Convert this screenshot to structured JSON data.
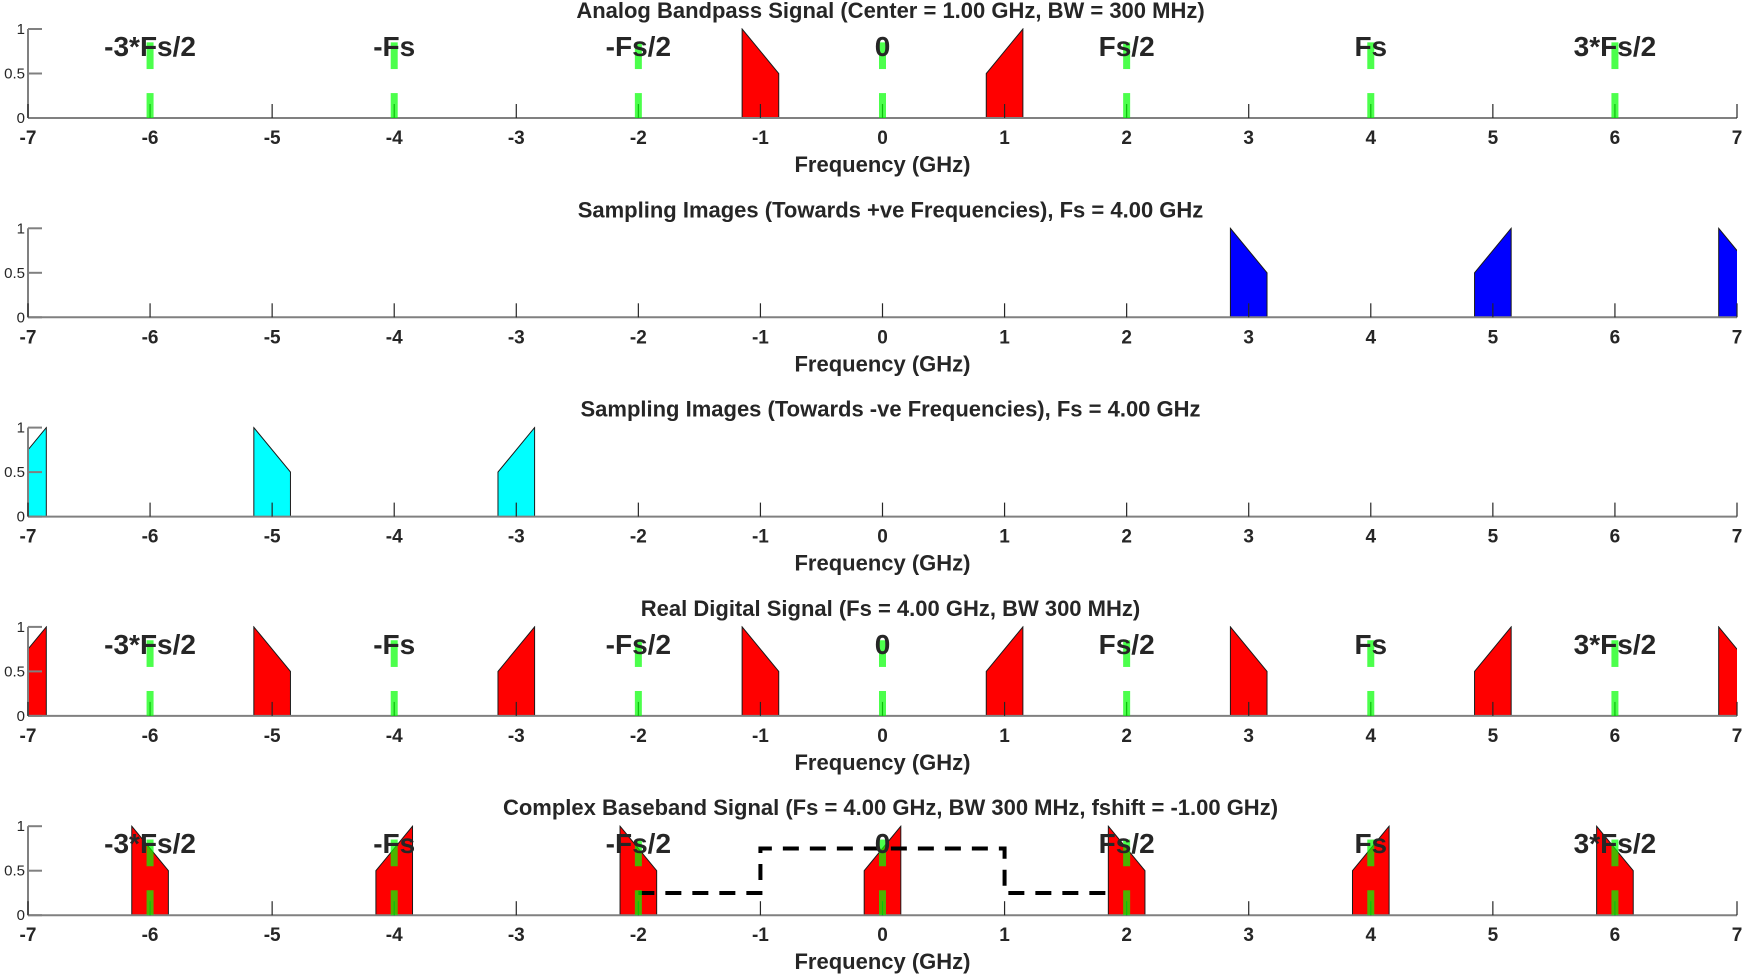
{
  "chart_data": [
    {
      "type": "area",
      "title": "Analog Bandpass Signal (Center = 1.00 GHz, BW = 300 MHz)",
      "xlabel": "Frequency (GHz)",
      "xlim": [
        -7,
        7
      ],
      "ylim": [
        0,
        1
      ],
      "xticks": [
        -7,
        -6,
        -5,
        -4,
        -3,
        -2,
        -1,
        0,
        1,
        2,
        3,
        4,
        5,
        6,
        7
      ],
      "yticks": [
        "0",
        "0.5",
        "1"
      ],
      "markers": true,
      "bands": [
        {
          "center": -1,
          "shape": "falling",
          "color": "#ff0000"
        },
        {
          "center": 1,
          "shape": "rising",
          "color": "#ff0000"
        }
      ]
    },
    {
      "type": "area",
      "title": "Sampling Images (Towards +ve Frequencies), Fs = 4.00 GHz",
      "xlabel": "Frequency (GHz)",
      "xlim": [
        -7,
        7
      ],
      "ylim": [
        0,
        1
      ],
      "xticks": [
        -7,
        -6,
        -5,
        -4,
        -3,
        -2,
        -1,
        0,
        1,
        2,
        3,
        4,
        5,
        6,
        7
      ],
      "yticks": [
        "0",
        "0.5",
        "1"
      ],
      "markers": false,
      "bands": [
        {
          "center": 3,
          "shape": "falling",
          "color": "#0000ff"
        },
        {
          "center": 5,
          "shape": "rising",
          "color": "#0000ff"
        },
        {
          "center": 7,
          "shape": "falling",
          "color": "#0000ff"
        }
      ]
    },
    {
      "type": "area",
      "title": "Sampling Images (Towards -ve Frequencies), Fs = 4.00 GHz",
      "xlabel": "Frequency (GHz)",
      "xlim": [
        -7,
        7
      ],
      "ylim": [
        0,
        1
      ],
      "xticks": [
        -7,
        -6,
        -5,
        -4,
        -3,
        -2,
        -1,
        0,
        1,
        2,
        3,
        4,
        5,
        6,
        7
      ],
      "yticks": [
        "0",
        "0.5",
        "1"
      ],
      "markers": false,
      "bands": [
        {
          "center": -7,
          "shape": "rising",
          "color": "#00ffff"
        },
        {
          "center": -5,
          "shape": "falling",
          "color": "#00ffff"
        },
        {
          "center": -3,
          "shape": "rising",
          "color": "#00ffff"
        }
      ]
    },
    {
      "type": "area",
      "title": "Real Digital Signal (Fs = 4.00 GHz, BW 300 MHz)",
      "xlabel": "Frequency (GHz)",
      "xlim": [
        -7,
        7
      ],
      "ylim": [
        0,
        1
      ],
      "xticks": [
        -7,
        -6,
        -5,
        -4,
        -3,
        -2,
        -1,
        0,
        1,
        2,
        3,
        4,
        5,
        6,
        7
      ],
      "yticks": [
        "0",
        "0.5",
        "1"
      ],
      "markers": true,
      "bands": [
        {
          "center": -7,
          "shape": "rising",
          "color": "#ff0000"
        },
        {
          "center": -5,
          "shape": "falling",
          "color": "#ff0000"
        },
        {
          "center": -3,
          "shape": "rising",
          "color": "#ff0000"
        },
        {
          "center": -1,
          "shape": "falling",
          "color": "#ff0000"
        },
        {
          "center": 1,
          "shape": "rising",
          "color": "#ff0000"
        },
        {
          "center": 3,
          "shape": "falling",
          "color": "#ff0000"
        },
        {
          "center": 5,
          "shape": "rising",
          "color": "#ff0000"
        },
        {
          "center": 7,
          "shape": "falling",
          "color": "#ff0000"
        }
      ]
    },
    {
      "type": "area",
      "title": "Complex Baseband Signal (Fs = 4.00 GHz, BW 300 MHz, fshift = -1.00 GHz)",
      "xlabel": "Frequency (GHz)",
      "xlim": [
        -7,
        7
      ],
      "ylim": [
        0,
        1
      ],
      "xticks": [
        -7,
        -6,
        -5,
        -4,
        -3,
        -2,
        -1,
        0,
        1,
        2,
        3,
        4,
        5,
        6,
        7
      ],
      "yticks": [
        "0",
        "0.5",
        "1"
      ],
      "markers": true,
      "filter": {
        "x": [
          -2,
          -1,
          -1,
          1,
          1,
          1.85
        ],
        "y": [
          0.25,
          0.25,
          0.75,
          0.75,
          0.25,
          0.25
        ],
        "style": "dashed",
        "color": "#000000"
      },
      "bands": [
        {
          "center": -6,
          "shape": "falling",
          "color": "#ff0000"
        },
        {
          "center": -4,
          "shape": "rising",
          "color": "#ff0000"
        },
        {
          "center": -2,
          "shape": "falling",
          "color": "#ff0000"
        },
        {
          "center": 0,
          "shape": "rising",
          "color": "#ff0000"
        },
        {
          "center": 2,
          "shape": "falling",
          "color": "#ff0000"
        },
        {
          "center": 4,
          "shape": "rising",
          "color": "#ff0000"
        },
        {
          "center": 6,
          "shape": "falling",
          "color": "#ff0000"
        }
      ]
    }
  ],
  "band_halfwidth_ghz": 0.15,
  "marker_labels": [
    {
      "x": -6,
      "text": "-3*Fs/2"
    },
    {
      "x": -4,
      "text": "-Fs"
    },
    {
      "x": -2,
      "text": "-Fs/2"
    },
    {
      "x": 0,
      "text": "0"
    },
    {
      "x": 2,
      "text": "Fs/2"
    },
    {
      "x": 4,
      "text": "Fs"
    },
    {
      "x": 6,
      "text": "3*Fs/2"
    }
  ],
  "marker_color": "#00ff00"
}
